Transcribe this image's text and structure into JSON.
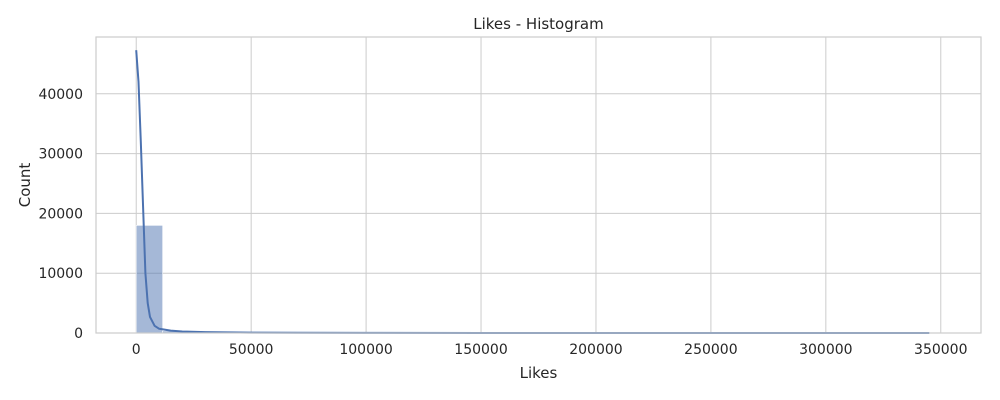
{
  "chart_data": {
    "type": "bar",
    "title": "Likes - Histogram",
    "xlabel": "Likes",
    "ylabel": "Count",
    "xlim": [
      -17500,
      367500
    ],
    "ylim": [
      0,
      49500
    ],
    "xticks": [
      0,
      50000,
      100000,
      150000,
      200000,
      250000,
      300000,
      350000
    ],
    "yticks": [
      0,
      10000,
      20000,
      30000,
      40000
    ],
    "grid": true,
    "bar_color": "#4c72b0",
    "kde_color": "#4c72b0",
    "bin_width": 11500,
    "bins": [
      {
        "x0": 0,
        "count": 18000
      },
      {
        "x0": 11500,
        "count": 350
      },
      {
        "x0": 23000,
        "count": 150
      },
      {
        "x0": 34500,
        "count": 80
      },
      {
        "x0": 46000,
        "count": 50
      },
      {
        "x0": 57500,
        "count": 30
      },
      {
        "x0": 69000,
        "count": 20
      },
      {
        "x0": 80500,
        "count": 10
      },
      {
        "x0": 92000,
        "count": 8
      },
      {
        "x0": 103500,
        "count": 5
      },
      {
        "x0": 115000,
        "count": 4
      },
      {
        "x0": 126500,
        "count": 3
      },
      {
        "x0": 138000,
        "count": 2
      },
      {
        "x0": 149500,
        "count": 2
      },
      {
        "x0": 161000,
        "count": 1
      },
      {
        "x0": 172500,
        "count": 1
      },
      {
        "x0": 184000,
        "count": 1
      },
      {
        "x0": 195500,
        "count": 1
      },
      {
        "x0": 207000,
        "count": 1
      },
      {
        "x0": 218500,
        "count": 1
      },
      {
        "x0": 230000,
        "count": 1
      },
      {
        "x0": 241500,
        "count": 1
      },
      {
        "x0": 253000,
        "count": 1
      },
      {
        "x0": 264500,
        "count": 1
      },
      {
        "x0": 276000,
        "count": 1
      },
      {
        "x0": 287500,
        "count": 1
      },
      {
        "x0": 299000,
        "count": 1
      },
      {
        "x0": 310500,
        "count": 1
      },
      {
        "x0": 322000,
        "count": 1
      },
      {
        "x0": 333500,
        "count": 1
      }
    ],
    "kde": {
      "x": [
        0,
        1000,
        2000,
        3000,
        4000,
        5000,
        6000,
        8000,
        10000,
        15000,
        20000,
        30000,
        40000,
        50000,
        70000,
        100000,
        150000,
        200000,
        250000,
        300000,
        345000
      ],
      "y": [
        47300,
        42000,
        32000,
        21000,
        10000,
        5000,
        2700,
        1200,
        700,
        400,
        250,
        150,
        100,
        60,
        30,
        15,
        8,
        5,
        4,
        3,
        2
      ]
    }
  }
}
